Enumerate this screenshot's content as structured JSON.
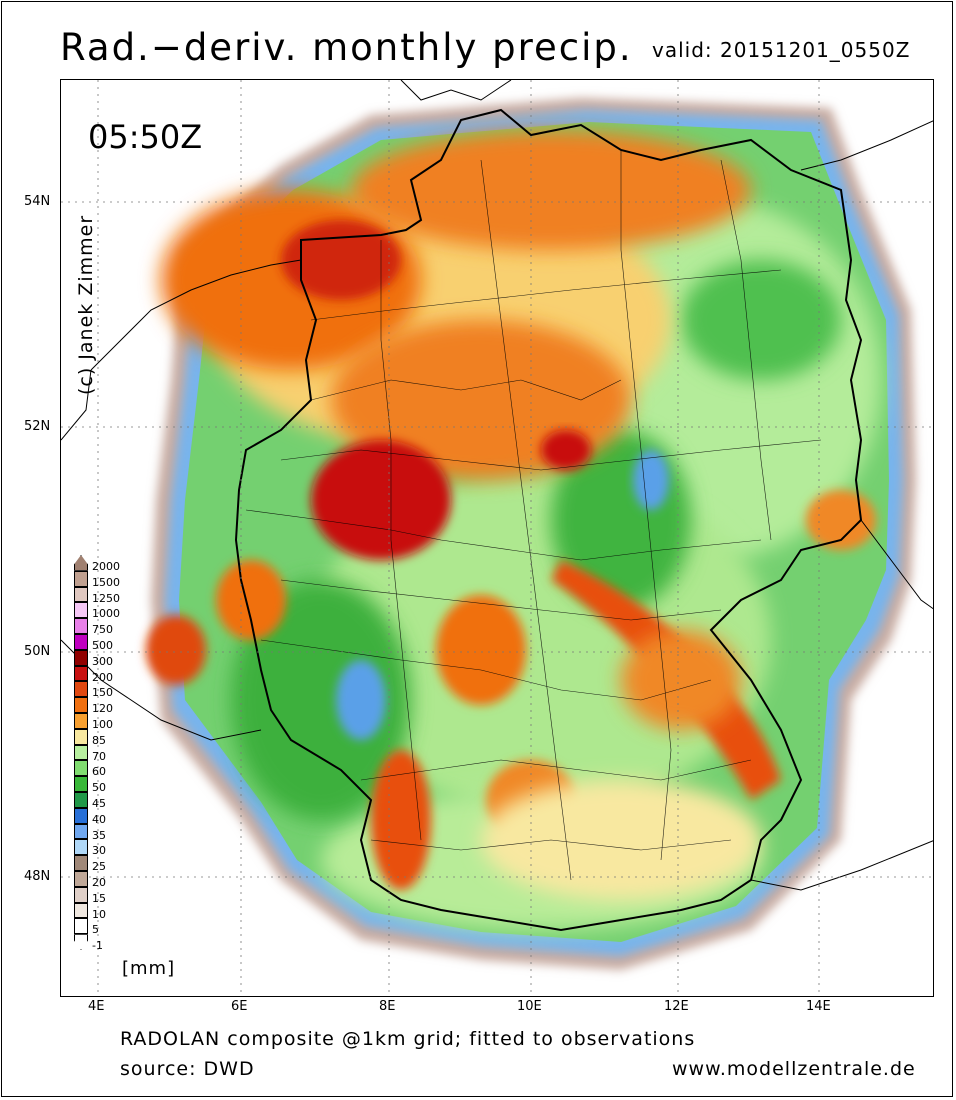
{
  "header": {
    "title": "Rad.−deriv. monthly precip.",
    "valid": "valid: 20151201_0550Z"
  },
  "map": {
    "time": "05:50Z",
    "credit": "(c) Janek Zimmer",
    "lat_labels": [
      "54N",
      "52N",
      "50N",
      "48N"
    ],
    "lon_labels": [
      "4E",
      "6E",
      "8E",
      "10E",
      "12E",
      "14E"
    ],
    "colors": {
      "background": "#ffffff",
      "land_outline": "#000000",
      "max_rain": "#b00000",
      "heavy_rain": "#e24a00",
      "moderate_rain": "#f09028",
      "light_rain": "#aee88f",
      "green_rain": "#3cb03c",
      "blue_low": "#5aa0e8",
      "grey_low": "#c8a8a0"
    }
  },
  "legend": {
    "unit": "[mm]",
    "entries": [
      {
        "value": "2000",
        "color": "#a08070"
      },
      {
        "value": "1500",
        "color": "#c0a090"
      },
      {
        "value": "1250",
        "color": "#e0c8c0"
      },
      {
        "value": "1000",
        "color": "#f6c8f6"
      },
      {
        "value": "750",
        "color": "#e880e8"
      },
      {
        "value": "500",
        "color": "#c000c0"
      },
      {
        "value": "300",
        "color": "#900000"
      },
      {
        "value": "200",
        "color": "#c81010"
      },
      {
        "value": "150",
        "color": "#e04810"
      },
      {
        "value": "120",
        "color": "#f07010"
      },
      {
        "value": "100",
        "color": "#f8a030"
      },
      {
        "value": "85",
        "color": "#f8e8a0"
      },
      {
        "value": "70",
        "color": "#b8f0a0"
      },
      {
        "value": "60",
        "color": "#80dc70"
      },
      {
        "value": "50",
        "color": "#38b838"
      },
      {
        "value": "45",
        "color": "#209848"
      },
      {
        "value": "40",
        "color": "#2870d8"
      },
      {
        "value": "35",
        "color": "#70a8f0"
      },
      {
        "value": "30",
        "color": "#b0d8f8"
      },
      {
        "value": "25",
        "color": "#a08878"
      },
      {
        "value": "20",
        "color": "#c0a898"
      },
      {
        "value": "15",
        "color": "#e0d0c8"
      },
      {
        "value": "10",
        "color": "#f0e8e0"
      },
      {
        "value": "5",
        "color": "#ffffff"
      },
      {
        "value": "-1",
        "color": "#ffffff"
      }
    ]
  },
  "footer": {
    "line1": "RADOLAN composite @1km grid; fitted to observations",
    "source": "source: DWD",
    "website": "www.modellzentrale.de"
  }
}
